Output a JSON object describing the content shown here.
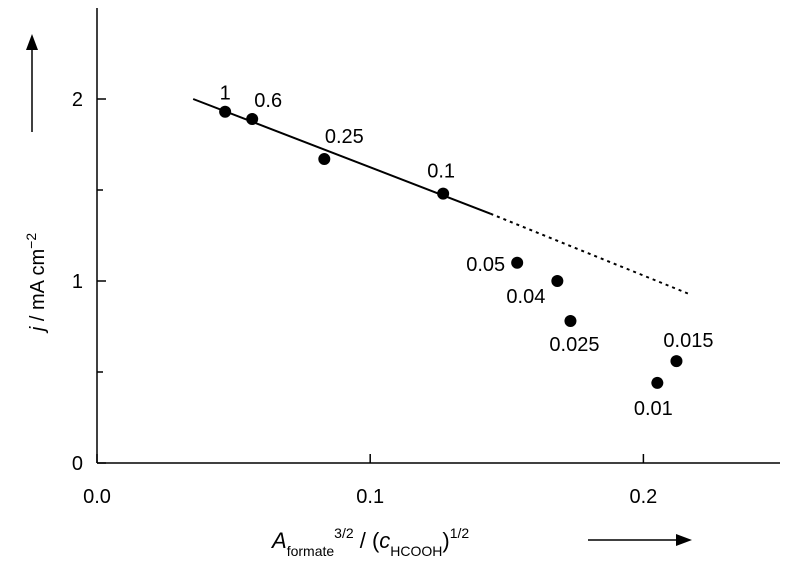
{
  "chart_data": {
    "type": "scatter",
    "x_label": [
      "A",
      "formate",
      "3/2",
      " / (",
      "c",
      "HCOOH",
      ")",
      "1/2"
    ],
    "y_label": [
      "j",
      " / mA cm",
      "−2"
    ],
    "series": [
      {
        "color": "#000000",
        "x": [
          0.0469,
          0.0568,
          0.0832,
          0.1267,
          0.1538,
          0.1685,
          0.1733,
          0.2121,
          0.2051
        ],
        "values": [
          1.93,
          1.89,
          1.67,
          1.48,
          1.1,
          1.0,
          0.78,
          0.56,
          0.44
        ],
        "labels": [
          "1",
          "0.6",
          "0.25",
          "0.1",
          "0.05",
          "0.04",
          "0.025",
          "0.015",
          "0.01"
        ]
      }
    ],
    "fit": {
      "solid": {
        "x": [
          0.0352,
          0.144
        ],
        "values": [
          2.0,
          1.37
        ]
      },
      "dotted": {
        "x": [
          0.144,
          0.2165
        ],
        "values": [
          1.37,
          0.93
        ]
      }
    },
    "xlim": [
      0,
      0.25
    ],
    "ylim": [
      0,
      2.5
    ],
    "xticks": [
      {
        "value": 0,
        "label": "0.0"
      },
      0.1,
      0.2
    ],
    "yticks": [
      0,
      1,
      2
    ],
    "yminor": [
      0.5,
      1.5
    ]
  }
}
